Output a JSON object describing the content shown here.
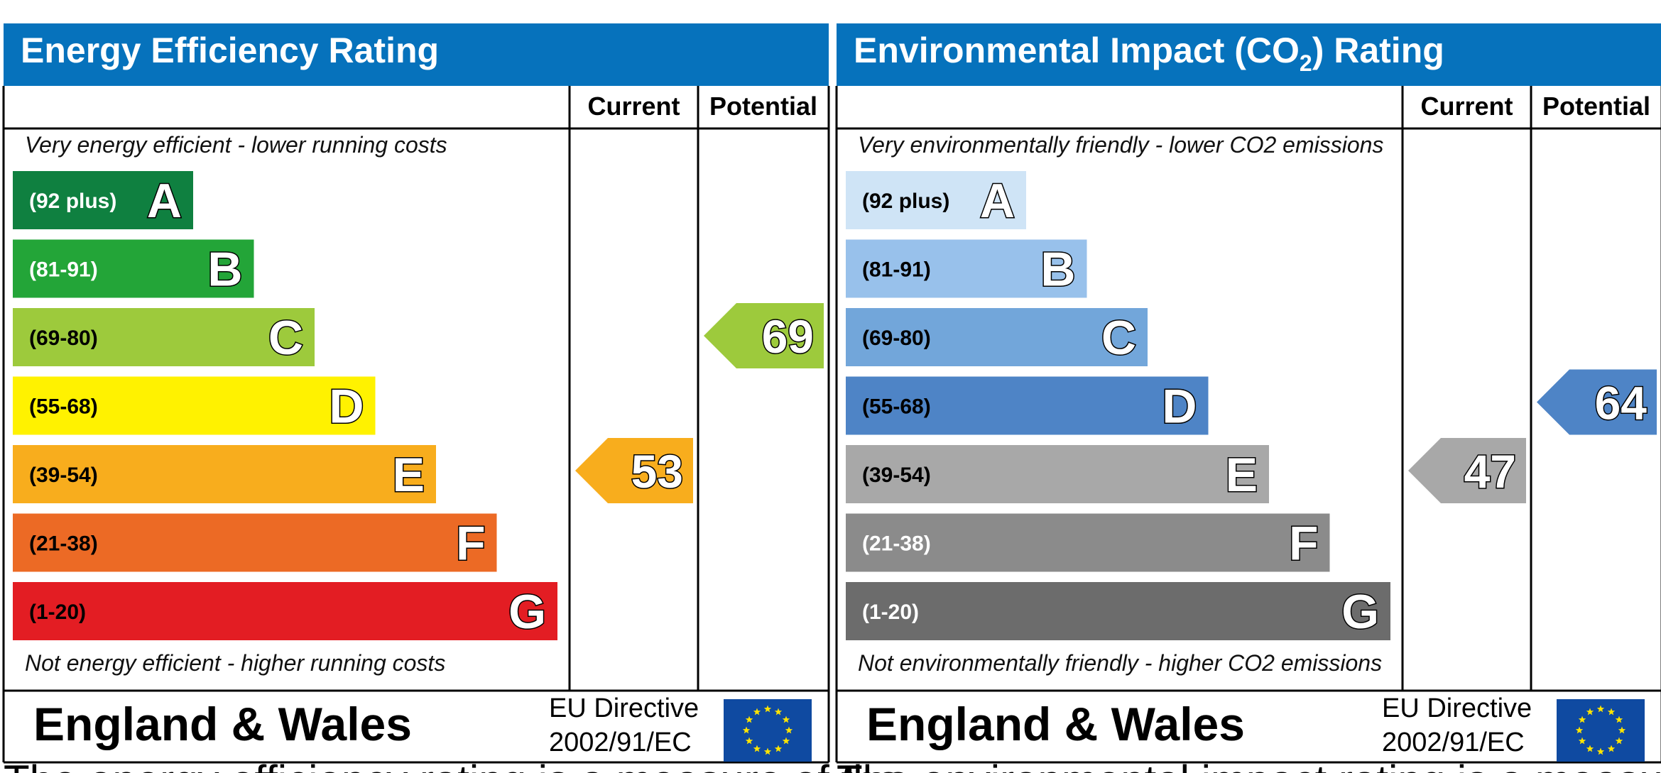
{
  "panels": [
    {
      "title": "Energy Efficiency Rating",
      "columns": {
        "current": "Current",
        "potential": "Potential"
      },
      "note_top": "Very energy efficient - lower running costs",
      "note_bottom": "Not energy efficient - higher running costs",
      "bands": [
        {
          "range": "(92 plus)",
          "letter": "A",
          "color": "#0f8040",
          "text_color": "#ffffff"
        },
        {
          "range": "(81-91)",
          "letter": "B",
          "color": "#23a538",
          "text_color": "#ffffff"
        },
        {
          "range": "(69-80)",
          "letter": "C",
          "color": "#9dca3c",
          "text_color": "#000000"
        },
        {
          "range": "(55-68)",
          "letter": "D",
          "color": "#fff200",
          "text_color": "#000000"
        },
        {
          "range": "(39-54)",
          "letter": "E",
          "color": "#f8ad1d",
          "text_color": "#000000"
        },
        {
          "range": "(21-38)",
          "letter": "F",
          "color": "#ec6a25",
          "text_color": "#000000"
        },
        {
          "range": "(1-20)",
          "letter": "G",
          "color": "#e31d23",
          "text_color": "#000000"
        }
      ],
      "current": {
        "value": "53",
        "band": 4
      },
      "potential": {
        "value": "69",
        "band": 2
      },
      "footer": {
        "region": "England & Wales",
        "directive_line1": "EU Directive",
        "directive_line2": "2002/91/EC"
      },
      "caption": "The energy efficiency rating is a measure of the"
    },
    {
      "title": "Environmental Impact (CO",
      "title_sub": "2",
      "title_suffix": ") Rating",
      "columns": {
        "current": "Current",
        "potential": "Potential"
      },
      "note_top": "Very environmentally friendly - lower CO2 emissions",
      "note_bottom": "Not environmentally friendly - higher CO2 emissions",
      "bands": [
        {
          "range": "(92 plus)",
          "letter": "A",
          "color": "#cfe4f6",
          "text_color": "#000000"
        },
        {
          "range": "(81-91)",
          "letter": "B",
          "color": "#98c1eb",
          "text_color": "#000000"
        },
        {
          "range": "(69-80)",
          "letter": "C",
          "color": "#72a6da",
          "text_color": "#000000"
        },
        {
          "range": "(55-68)",
          "letter": "D",
          "color": "#4e84c6",
          "text_color": "#000000"
        },
        {
          "range": "(39-54)",
          "letter": "E",
          "color": "#a8a8a8",
          "text_color": "#000000"
        },
        {
          "range": "(21-38)",
          "letter": "F",
          "color": "#8b8b8b",
          "text_color": "#ffffff"
        },
        {
          "range": "(1-20)",
          "letter": "G",
          "color": "#6c6c6c",
          "text_color": "#ffffff"
        }
      ],
      "current": {
        "value": "47",
        "band": 4
      },
      "potential": {
        "value": "64",
        "band": 3
      },
      "footer": {
        "region": "England & Wales",
        "directive_line1": "EU Directive",
        "directive_line2": "2002/91/EC"
      },
      "caption": "The environmental impact rating is a measure of a"
    }
  ],
  "colors": {
    "header_blue": "#0672bc",
    "eu_blue": "#0f4aa1",
    "eu_star": "#ffe500"
  }
}
